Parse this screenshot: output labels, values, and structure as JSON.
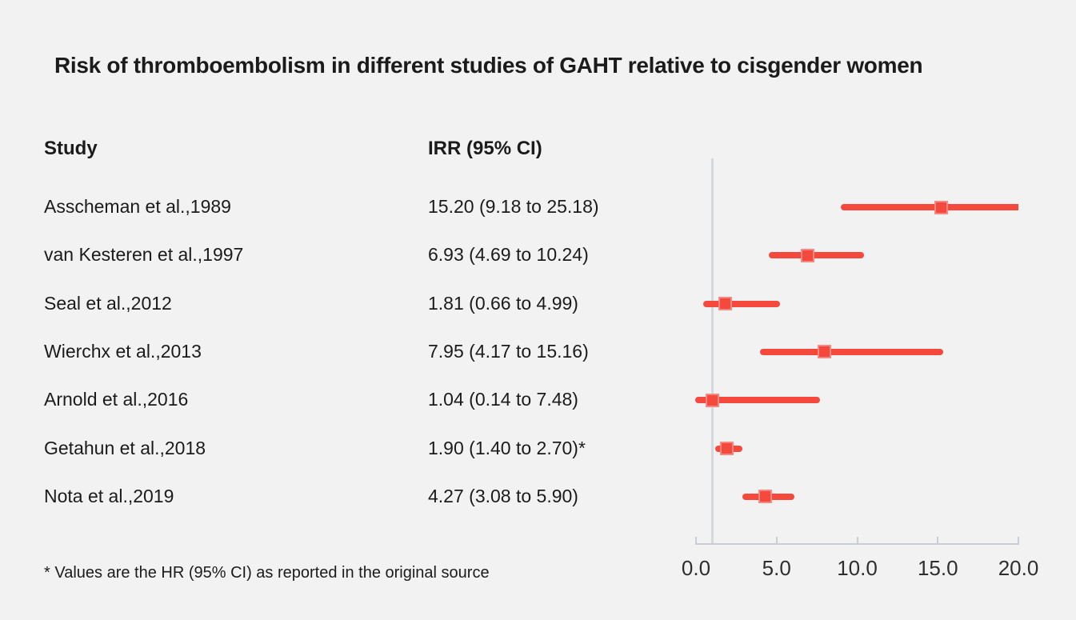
{
  "title": "Risk of thromboembolism in different studies of GAHT relative to cisgender women",
  "columns": {
    "study": "Study",
    "irr": "IRR (95% CI)"
  },
  "footnote": "* Values are the HR (95% CI) as reported in the original source",
  "colors": {
    "background": "#f2f2f2",
    "text": "#1b1b1b",
    "accent_red": "#f5493d",
    "reference_line": "#d4d9de",
    "axis_line": "#c9ced6",
    "tick_label": "#2e2e2e"
  },
  "chart_data": {
    "type": "scatter",
    "variant": "forest_plot",
    "title": "Risk of thromboembolism in different studies of GAHT relative to cisgender women",
    "xlabel": "",
    "ylabel": "",
    "xlim": [
      0,
      20
    ],
    "x_ticks": [
      0,
      5,
      10,
      15,
      20
    ],
    "x_tick_labels": [
      "0.0",
      "5.0",
      "10.0",
      "15.0",
      "20.0"
    ],
    "reference_line_x": 1.0,
    "grid": false,
    "legend": false,
    "studies": [
      {
        "label": "Asscheman et al.,1989",
        "irr_text": "15.20 (9.18 to 25.18)",
        "estimate": 15.2,
        "ci_low": 9.18,
        "ci_high": 25.18
      },
      {
        "label": "van Kesteren et al.,1997",
        "irr_text": "6.93 (4.69 to 10.24)",
        "estimate": 6.93,
        "ci_low": 4.69,
        "ci_high": 10.24
      },
      {
        "label": "Seal et al.,2012",
        "irr_text": "1.81 (0.66 to 4.99)",
        "estimate": 1.81,
        "ci_low": 0.66,
        "ci_high": 4.99
      },
      {
        "label": "Wierchx et al.,2013",
        "irr_text": "7.95 (4.17 to 15.16)",
        "estimate": 7.95,
        "ci_low": 4.17,
        "ci_high": 15.16
      },
      {
        "label": "Arnold et al.,2016",
        "irr_text": "1.04 (0.14 to 7.48)",
        "estimate": 1.04,
        "ci_low": 0.14,
        "ci_high": 7.48
      },
      {
        "label": "Getahun et al.,2018",
        "irr_text": "1.90 (1.40 to 2.70)*",
        "estimate": 1.9,
        "ci_low": 1.4,
        "ci_high": 2.7
      },
      {
        "label": "Nota et al.,2019",
        "irr_text": "4.27 (3.08 to 5.90)",
        "estimate": 4.27,
        "ci_low": 3.08,
        "ci_high": 5.9
      }
    ]
  }
}
